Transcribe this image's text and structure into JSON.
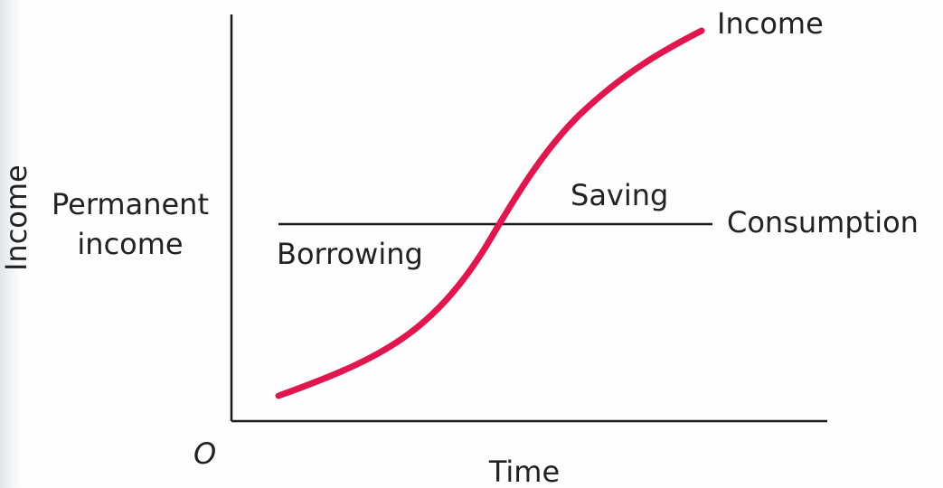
{
  "diagram": {
    "y_axis_title": "Income",
    "x_axis_title": "Time",
    "origin_label": "O",
    "level_label_line1": "Permanent",
    "level_label_line2": "income",
    "income_curve_label": "Income",
    "consumption_line_label": "Consumption",
    "region_above_label": "Saving",
    "region_below_label": "Borrowing"
  },
  "colors": {
    "income_curve": "#e0164f",
    "axes": "#1a1a1a",
    "consumption_line": "#1a1a1a"
  }
}
